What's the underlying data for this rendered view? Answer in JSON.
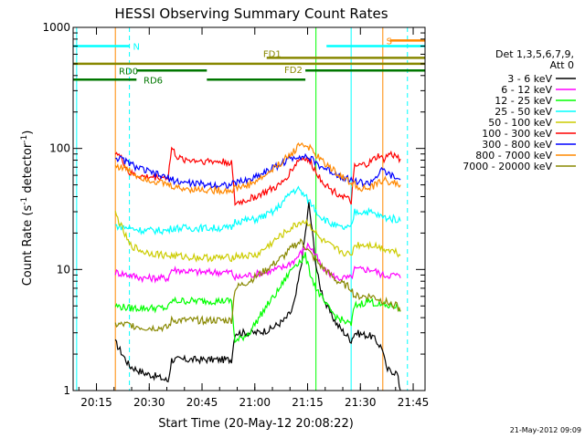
{
  "chart_data": {
    "type": "line",
    "title": "HESSI Observing Summary Count Rates",
    "xlabel": "Start Time (20-May-12 20:08:22)",
    "ylabel": "Count Rate (s",
    "ylabel_sup1": "-1",
    "ylabel_mid": " detector",
    "ylabel_sup2": "-1",
    "ylabel_end": ")",
    "xlim_minutes": [
      0,
      100
    ],
    "ylim": [
      1,
      1000
    ],
    "yscale": "log",
    "x_ticks": [
      {
        "label": "20:15",
        "minute": 15
      },
      {
        "label": "20:30",
        "minute": 30
      },
      {
        "label": "20:45",
        "minute": 45
      },
      {
        "label": "21:00",
        "minute": 60
      },
      {
        "label": "21:15",
        "minute": 75
      },
      {
        "label": "21:30",
        "minute": 90
      },
      {
        "label": "21:45",
        "minute": 105
      }
    ],
    "y_ticks": [
      {
        "label": "1",
        "value": 1
      },
      {
        "label": "10",
        "value": 10
      },
      {
        "label": "100",
        "value": 100
      },
      {
        "label": "1000",
        "value": 1000
      }
    ],
    "legend_title": [
      "Det 1,3,5,6,7,9,",
      "Att 0"
    ],
    "legend_placement": "right",
    "series": [
      {
        "name": "3 - 6 keV",
        "color": "#000000",
        "points": [
          [
            12,
            2.5
          ],
          [
            16,
            1.6
          ],
          [
            20,
            1.4
          ],
          [
            24,
            1.3
          ],
          [
            27,
            1.2
          ],
          [
            28,
            1.8
          ],
          [
            34,
            1.8
          ],
          [
            40,
            1.8
          ],
          [
            45,
            1.8
          ],
          [
            46,
            3.0
          ],
          [
            52,
            3.0
          ],
          [
            56,
            3.2
          ],
          [
            58,
            3.5
          ],
          [
            60,
            3.8
          ],
          [
            62,
            4.5
          ],
          [
            63,
            5.5
          ],
          [
            64,
            8
          ],
          [
            65,
            12
          ],
          [
            66,
            20
          ],
          [
            67,
            35
          ],
          [
            68,
            20
          ],
          [
            69,
            11
          ],
          [
            70,
            7.5
          ],
          [
            72,
            5
          ],
          [
            75,
            3.5
          ],
          [
            79,
            2.6
          ],
          [
            80,
            3.0
          ],
          [
            85,
            2.8
          ],
          [
            88,
            2.2
          ],
          [
            89,
            1.5
          ],
          [
            92,
            1.4
          ],
          [
            93,
            1.0
          ]
        ]
      },
      {
        "name": "6 - 12 keV",
        "color": "#ff00ff",
        "points": [
          [
            12,
            9.5
          ],
          [
            16,
            9
          ],
          [
            20,
            8.5
          ],
          [
            27,
            8.5
          ],
          [
            28,
            10
          ],
          [
            36,
            9.5
          ],
          [
            45,
            9.5
          ],
          [
            46,
            8.5
          ],
          [
            50,
            9
          ],
          [
            55,
            9.5
          ],
          [
            60,
            10.5
          ],
          [
            63,
            12
          ],
          [
            65,
            14
          ],
          [
            67,
            16
          ],
          [
            69,
            13
          ],
          [
            71,
            10
          ],
          [
            75,
            8.5
          ],
          [
            79,
            8.5
          ],
          [
            80,
            10
          ],
          [
            85,
            10
          ],
          [
            88,
            9
          ],
          [
            92,
            9
          ],
          [
            93,
            8.5
          ]
        ]
      },
      {
        "name": "12 - 25 keV",
        "color": "#00ff00",
        "points": [
          [
            12,
            5
          ],
          [
            16,
            4.8
          ],
          [
            20,
            4.8
          ],
          [
            27,
            4.8
          ],
          [
            28,
            5.5
          ],
          [
            36,
            5.5
          ],
          [
            45,
            5.5
          ],
          [
            46,
            2.5
          ],
          [
            50,
            3.0
          ],
          [
            55,
            5
          ],
          [
            58,
            6.5
          ],
          [
            61,
            9
          ],
          [
            63,
            11
          ],
          [
            65,
            12
          ],
          [
            66,
            13
          ],
          [
            67,
            10
          ],
          [
            69,
            7
          ],
          [
            72,
            5
          ],
          [
            75,
            4
          ],
          [
            79,
            3.5
          ],
          [
            80,
            5
          ],
          [
            84,
            5.5
          ],
          [
            88,
            5
          ],
          [
            92,
            5
          ],
          [
            93,
            4.5
          ]
        ]
      },
      {
        "name": "25 - 50 keV",
        "color": "#00ffff",
        "points": [
          [
            12,
            23
          ],
          [
            16,
            22
          ],
          [
            20,
            21
          ],
          [
            27,
            21
          ],
          [
            28,
            22
          ],
          [
            36,
            22
          ],
          [
            45,
            22
          ],
          [
            46,
            25
          ],
          [
            52,
            26
          ],
          [
            57,
            30
          ],
          [
            60,
            37
          ],
          [
            62,
            44
          ],
          [
            64,
            46
          ],
          [
            66,
            40
          ],
          [
            68,
            34
          ],
          [
            70,
            28
          ],
          [
            73,
            24
          ],
          [
            76,
            22
          ],
          [
            79,
            22
          ],
          [
            80,
            30
          ],
          [
            84,
            30
          ],
          [
            88,
            27
          ],
          [
            92,
            26
          ],
          [
            93,
            25
          ]
        ]
      },
      {
        "name": "50 - 100 keV",
        "color": "#cccc00",
        "points": [
          [
            12,
            29
          ],
          [
            16,
            16
          ],
          [
            20,
            14
          ],
          [
            27,
            13
          ],
          [
            28,
            13
          ],
          [
            36,
            12.5
          ],
          [
            45,
            12.5
          ],
          [
            46,
            13
          ],
          [
            52,
            13
          ],
          [
            58,
            18
          ],
          [
            62,
            22
          ],
          [
            65,
            25
          ],
          [
            67,
            24
          ],
          [
            70,
            18
          ],
          [
            74,
            15
          ],
          [
            79,
            13
          ],
          [
            80,
            16
          ],
          [
            85,
            16
          ],
          [
            88,
            15
          ],
          [
            92,
            14
          ],
          [
            93,
            13
          ]
        ]
      },
      {
        "name": "100 - 300 keV",
        "color": "#ff0000",
        "points": [
          [
            12,
            95
          ],
          [
            14,
            80
          ],
          [
            16,
            62
          ],
          [
            20,
            58
          ],
          [
            27,
            58
          ],
          [
            28,
            100
          ],
          [
            30,
            82
          ],
          [
            34,
            80
          ],
          [
            40,
            78
          ],
          [
            45,
            77
          ],
          [
            46,
            35
          ],
          [
            50,
            38
          ],
          [
            55,
            44
          ],
          [
            59,
            50
          ],
          [
            62,
            66
          ],
          [
            64,
            80
          ],
          [
            66,
            84
          ],
          [
            68,
            72
          ],
          [
            70,
            58
          ],
          [
            73,
            46
          ],
          [
            77,
            40
          ],
          [
            79,
            36
          ],
          [
            80,
            70
          ],
          [
            84,
            75
          ],
          [
            87,
            88
          ],
          [
            88,
            80
          ],
          [
            90,
            90
          ],
          [
            92,
            85
          ],
          [
            93,
            82
          ]
        ]
      },
      {
        "name": "300 - 800 keV",
        "color": "#0000ff",
        "points": [
          [
            12,
            85
          ],
          [
            15,
            78
          ],
          [
            18,
            70
          ],
          [
            22,
            63
          ],
          [
            26,
            58
          ],
          [
            30,
            53
          ],
          [
            35,
            51
          ],
          [
            40,
            50
          ],
          [
            45,
            50
          ],
          [
            46,
            52
          ],
          [
            50,
            55
          ],
          [
            54,
            63
          ],
          [
            58,
            72
          ],
          [
            62,
            83
          ],
          [
            64,
            87
          ],
          [
            66,
            86
          ],
          [
            68,
            80
          ],
          [
            70,
            72
          ],
          [
            74,
            63
          ],
          [
            78,
            56
          ],
          [
            82,
            52
          ],
          [
            84,
            51
          ],
          [
            86,
            58
          ],
          [
            88,
            66
          ],
          [
            90,
            60
          ],
          [
            92,
            56
          ],
          [
            93,
            55
          ]
        ]
      },
      {
        "name": "800 - 7000 keV",
        "color": "#ff8800",
        "points": [
          [
            12,
            72
          ],
          [
            15,
            68
          ],
          [
            18,
            60
          ],
          [
            22,
            55
          ],
          [
            26,
            51
          ],
          [
            30,
            47
          ],
          [
            35,
            46
          ],
          [
            40,
            45
          ],
          [
            45,
            45
          ],
          [
            46,
            47
          ],
          [
            50,
            50
          ],
          [
            54,
            58
          ],
          [
            58,
            72
          ],
          [
            62,
            90
          ],
          [
            64,
            105
          ],
          [
            65,
            110
          ],
          [
            67,
            102
          ],
          [
            70,
            82
          ],
          [
            74,
            66
          ],
          [
            78,
            54
          ],
          [
            82,
            47
          ],
          [
            84,
            46
          ],
          [
            86,
            50
          ],
          [
            88,
            55
          ],
          [
            90,
            53
          ],
          [
            92,
            51
          ],
          [
            93,
            50
          ]
        ]
      },
      {
        "name": "7000 - 20000 keV",
        "color": "#888800",
        "points": [
          [
            12,
            3.5
          ],
          [
            16,
            3.5
          ],
          [
            20,
            3.3
          ],
          [
            27,
            3.3
          ],
          [
            28,
            3.8
          ],
          [
            36,
            3.8
          ],
          [
            45,
            3.8
          ],
          [
            46,
            7
          ],
          [
            50,
            8
          ],
          [
            55,
            10
          ],
          [
            60,
            13
          ],
          [
            63,
            16
          ],
          [
            65,
            17
          ],
          [
            67,
            14
          ],
          [
            70,
            11
          ],
          [
            75,
            8
          ],
          [
            79,
            7
          ],
          [
            80,
            6
          ],
          [
            85,
            6
          ],
          [
            88,
            5.5
          ],
          [
            92,
            5
          ],
          [
            93,
            4.5
          ]
        ]
      }
    ],
    "flag_labels": {
      "n": "N",
      "s": "S",
      "fd1": "FD1",
      "fd2": "FD2",
      "rd0": "RD0",
      "rd6": "RD6"
    },
    "flag_segments": [
      {
        "label": "N",
        "color": "#00ffff",
        "value": 700,
        "from": 0,
        "to": 16
      },
      {
        "label": "N",
        "color": "#00ffff",
        "value": 700,
        "from": 72,
        "to": 100
      },
      {
        "label": "S",
        "color": "#ff8800",
        "value": 780,
        "from": 90,
        "to": 100
      },
      {
        "label": "FD1",
        "color": "#888800",
        "value": 560,
        "from": 55,
        "to": 100
      },
      {
        "label": "FD2",
        "color": "#888800",
        "value": 500,
        "from": 0,
        "to": 100
      },
      {
        "label": "RD0",
        "color": "#007700",
        "value": 440,
        "from": 18,
        "to": 38
      },
      {
        "label": "RD0",
        "color": "#007700",
        "value": 440,
        "from": 66,
        "to": 100
      },
      {
        "label": "RD6",
        "color": "#007700",
        "value": 370,
        "from": 0,
        "to": 18
      },
      {
        "label": "RD6",
        "color": "#007700",
        "value": 370,
        "from": 38,
        "to": 66
      }
    ],
    "vertical_markers": [
      {
        "color": "#00ffff",
        "minute": 1
      },
      {
        "color": "#00ffff",
        "minute": 16,
        "dashed": true
      },
      {
        "color": "#ff8800",
        "minute": 12
      },
      {
        "color": "#00ff00",
        "minute": 69
      },
      {
        "color": "#00ffff",
        "minute": 79
      },
      {
        "color": "#ff8800",
        "minute": 88
      },
      {
        "color": "#00ffff",
        "minute": 95,
        "dashed": true
      }
    ],
    "timestamp": "21-May-2012 09:09"
  }
}
